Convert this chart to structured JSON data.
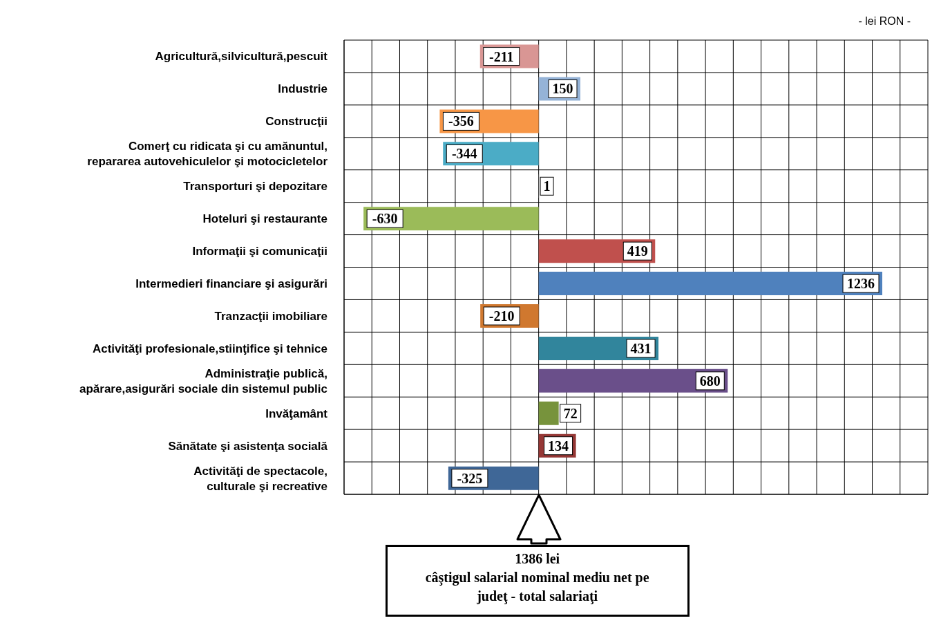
{
  "chart_data": {
    "type": "bar",
    "orientation": "horizontal",
    "categories": [
      "Agricultură,silvicultură,pescuit",
      "Industrie",
      "Construcţii",
      "Comerţ cu ridicata şi cu amănuntul,\nrepararea autovehiculelor şi motocicletelor",
      "Transporturi şi depozitare",
      "Hoteluri şi restaurante",
      "Informaţii şi comunicaţii",
      "Intermedieri financiare şi asigurări",
      "Tranzacţii imobiliare",
      "Activităţi profesionale,stiinţifice şi tehnice",
      "Administraţie publică,\napărare,asigurări sociale din sistemul public",
      "Invăţamânt",
      "Sănătate şi asistenţa socială",
      "Activităţi de spectacole,\nculturale şi recreative"
    ],
    "values": [
      -211,
      150,
      -356,
      -344,
      1,
      -630,
      419,
      1236,
      -210,
      431,
      680,
      72,
      134,
      -325
    ],
    "colors": [
      "#d99694",
      "#95b3d7",
      "#f79646",
      "#4bacc6",
      "#7f7f7f",
      "#9bbb59",
      "#c0504d",
      "#4f81bd",
      "#d0782f",
      "#31859c",
      "#6a4f8a",
      "#77933c",
      "#953735",
      "#3f6797"
    ],
    "xlim": [
      -700,
      1400
    ],
    "xticks": [
      {
        "value": -700,
        "label": null
      },
      {
        "value": -600,
        "label": null
      },
      {
        "value": -500,
        "label": null
      },
      {
        "value": -400,
        "label": null
      },
      {
        "value": -300,
        "label": null
      },
      {
        "value": -200,
        "label": null
      },
      {
        "value": -100,
        "label": null
      },
      {
        "value": 0,
        "label": null
      },
      {
        "value": 100,
        "label": null
      },
      {
        "value": 200,
        "label": null
      },
      {
        "value": 300,
        "label": null
      },
      {
        "value": 400,
        "label": null
      },
      {
        "value": 500,
        "label": null
      },
      {
        "value": 600,
        "label": null
      },
      {
        "value": 700,
        "label": null
      },
      {
        "value": 800,
        "label": null
      },
      {
        "value": 900,
        "label": null
      },
      {
        "value": 1000,
        "label": null
      },
      {
        "value": 1100,
        "label": null
      },
      {
        "value": 1200,
        "label": null
      },
      {
        "value": 1300,
        "label": null
      },
      {
        "value": 1400,
        "label": null
      }
    ],
    "tick_labels": "y",
    "grid": true,
    "data_labels": true,
    "legend": false,
    "annotations": [
      "- lei RON -",
      "1386 lei\ncâştigul salarial nominal mediu net pe\njudeţ - total salariaţi"
    ]
  }
}
